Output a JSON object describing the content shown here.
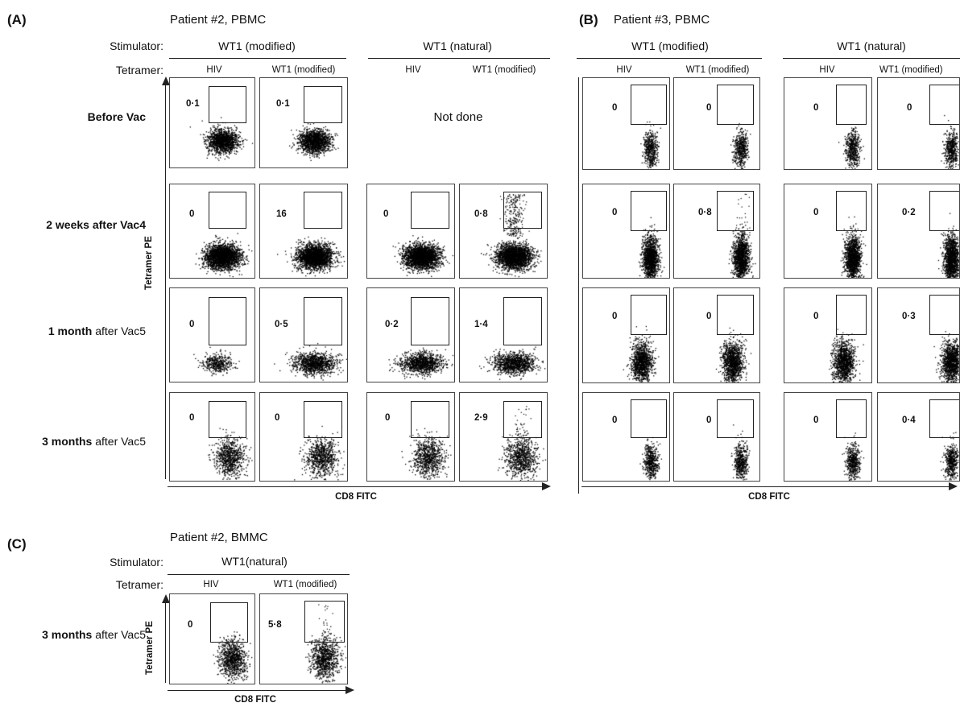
{
  "panel_a": {
    "letter": "(A)",
    "title": "Patient #2, PBMC",
    "stimulator_label": "Stimulator:",
    "tetramer_label": "Tetramer:",
    "stim_modified": "WT1 (modified)",
    "stim_natural": "WT1 (natural)",
    "col_hiv_1": "HIV",
    "col_wt1_1": "WT1 (modified)",
    "col_hiv_2": "HIV",
    "col_wt1_2": "WT1 (modified)",
    "not_done": "Not done",
    "y_axis": "Tetramer PE",
    "x_axis": "CD8 FITC",
    "rows": {
      "r0": "Before Vac",
      "r1": "2 weeks after Vac4",
      "r2_bold": "1 month",
      "r2_plain": " after Vac5",
      "r3_bold": "3 months",
      "r3_plain": " after Vac5"
    },
    "values": {
      "r0c0": "0·1",
      "r0c1": "0·1",
      "r1c0": "0",
      "r1c1": "16",
      "r1c2": "0",
      "r1c3": "0·8",
      "r2c0": "0",
      "r2c1": "0·5",
      "r2c2": "0·2",
      "r2c3": "1·4",
      "r3c0": "0",
      "r3c1": "0",
      "r3c2": "0",
      "r3c3": "2·9"
    }
  },
  "panel_b": {
    "letter": "(B)",
    "title": "Patient #3, PBMC",
    "stim_modified": "WT1 (modified)",
    "stim_natural": "WT1 (natural)",
    "col_hiv_1": "HIV",
    "col_wt1_1": "WT1 (modified)",
    "col_hiv_2": "HIV",
    "col_wt1_2": "WT1 (modified)",
    "x_axis": "CD8 FITC",
    "values": {
      "r0c0": "0",
      "r0c1": "0",
      "r0c2": "0",
      "r0c3": "0",
      "r1c0": "0",
      "r1c1": "0·8",
      "r1c2": "0",
      "r1c3": "0·2",
      "r2c0": "0",
      "r2c1": "0",
      "r2c2": "0",
      "r2c3": "0·3",
      "r3c0": "0",
      "r3c1": "0",
      "r3c2": "0",
      "r3c3": "0·4"
    }
  },
  "panel_c": {
    "letter": "(C)",
    "title": "Patient #2, BMMC",
    "stimulator_label": "Stimulator:",
    "tetramer_label": "Tetramer:",
    "stim_natural": "WT1(natural)",
    "col_hiv": "HIV",
    "col_wt1": "WT1 (modified)",
    "row_bold": "3 months",
    "row_plain": " after Vac5",
    "y_axis": "Tetramer PE",
    "x_axis": "CD8 FITC",
    "values": {
      "c0": "0",
      "c1": "5·8"
    }
  },
  "colors": {
    "ink": "#111111",
    "dots": "#000000"
  }
}
